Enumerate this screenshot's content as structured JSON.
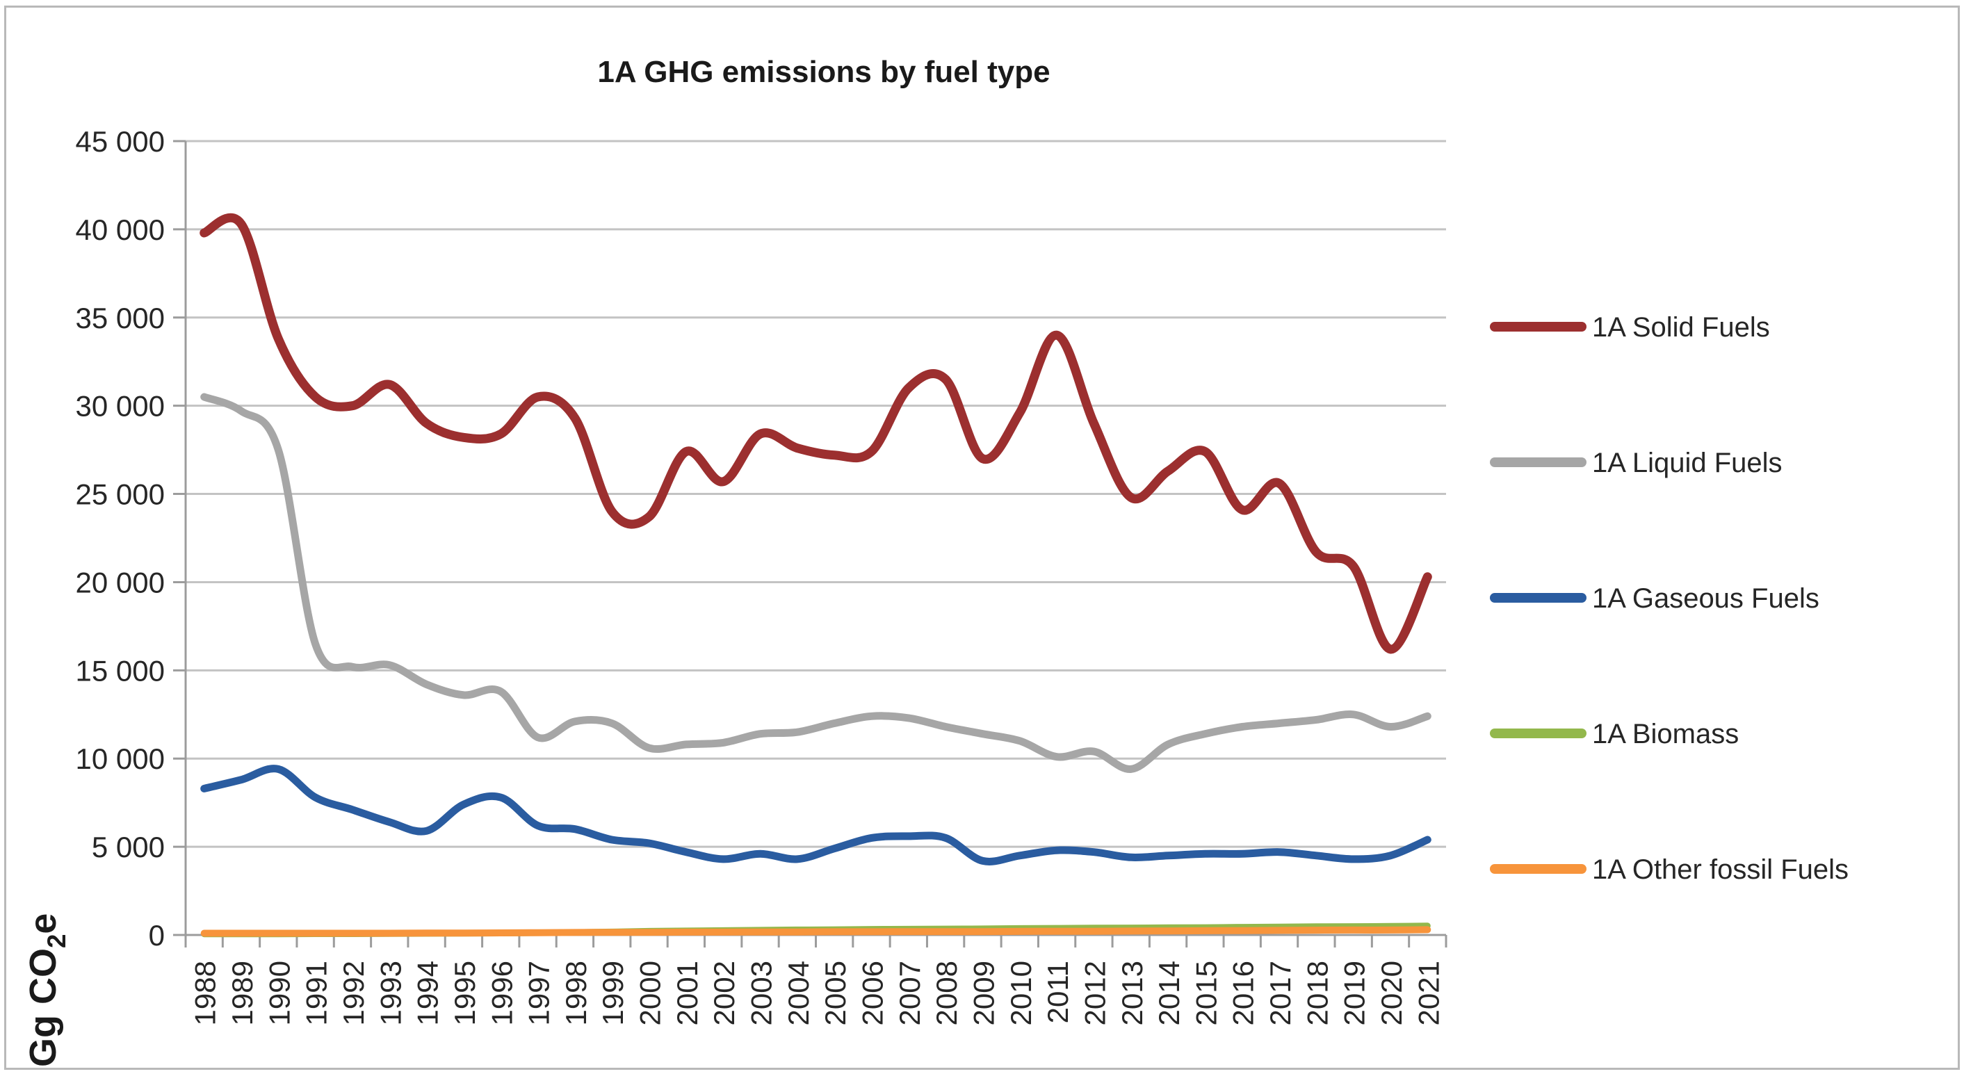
{
  "frame": {
    "border_color": "#b9b9b9",
    "background": "#ffffff"
  },
  "chart_data": {
    "type": "line",
    "title": "1A GHG emissions by fuel type",
    "ylabel": "Gg CO2e",
    "ylabel_parts": [
      "Gg CO",
      "2",
      "e"
    ],
    "xlabel": "",
    "categories": [
      "1988",
      "1989",
      "1990",
      "1991",
      "1992",
      "1993",
      "1994",
      "1995",
      "1996",
      "1997",
      "1998",
      "1999",
      "2000",
      "2001",
      "2002",
      "2003",
      "2004",
      "2005",
      "2006",
      "2007",
      "2008",
      "2009",
      "2010",
      "2011",
      "2012",
      "2013",
      "2014",
      "2015",
      "2016",
      "2017",
      "2018",
      "2019",
      "2020",
      "2021"
    ],
    "ylim": [
      0,
      45000
    ],
    "ytick_step": 5000,
    "ytick_labels": [
      "0",
      "5 000",
      "10 000",
      "15 000",
      "20 000",
      "25 000",
      "30 000",
      "35 000",
      "40 000",
      "45 000"
    ],
    "grid": true,
    "smooth": true,
    "legend_position": "right",
    "axis_color": "#9c9c9c",
    "gridline_color": "#c3c3c3",
    "text_color": "#262626",
    "series": [
      {
        "name": "1A Solid Fuels",
        "color": "#9C2F2F",
        "width": 13,
        "values": [
          39800,
          40300,
          33800,
          30500,
          30000,
          31200,
          29000,
          28200,
          28400,
          30500,
          29300,
          24000,
          23700,
          27400,
          25700,
          28400,
          27600,
          27200,
          27400,
          31000,
          31500,
          27000,
          29600,
          34000,
          29000,
          24800,
          26300,
          27400,
          24100,
          25600,
          21700,
          20900,
          16200,
          20300
        ]
      },
      {
        "name": "1A Liquid Fuels",
        "color": "#A6A6A6",
        "width": 11,
        "values": [
          30500,
          29700,
          27500,
          16500,
          15200,
          15300,
          14200,
          13600,
          13800,
          11200,
          12100,
          12000,
          10600,
          10800,
          10900,
          11400,
          11500,
          12000,
          12400,
          12300,
          11800,
          11400,
          11000,
          10100,
          10400,
          9400,
          10800,
          11400,
          11800,
          12000,
          12200,
          12500,
          11800,
          12400
        ]
      },
      {
        "name": "1A Gaseous Fuels",
        "color": "#2A5CA0",
        "width": 11,
        "values": [
          8300,
          8800,
          9400,
          7800,
          7100,
          6400,
          5900,
          7400,
          7800,
          6200,
          6000,
          5400,
          5200,
          4700,
          4300,
          4600,
          4300,
          4900,
          5500,
          5600,
          5500,
          4200,
          4500,
          4800,
          4700,
          4400,
          4500,
          4600,
          4600,
          4700,
          4500,
          4300,
          4500,
          5400
        ]
      },
      {
        "name": "1A Biomass",
        "color": "#93B84C",
        "width": 9,
        "values": [
          50,
          50,
          50,
          60,
          60,
          70,
          80,
          90,
          100,
          120,
          150,
          180,
          220,
          240,
          260,
          280,
          300,
          310,
          330,
          340,
          350,
          360,
          380,
          390,
          400,
          410,
          420,
          430,
          450,
          460,
          480,
          490,
          500,
          520
        ]
      },
      {
        "name": "1A Other fossil Fuels",
        "color": "#F7943B",
        "width": 10,
        "values": [
          100,
          100,
          100,
          100,
          100,
          100,
          110,
          110,
          120,
          130,
          140,
          150,
          150,
          160,
          160,
          170,
          170,
          180,
          180,
          190,
          190,
          190,
          200,
          210,
          210,
          220,
          230,
          240,
          250,
          260,
          270,
          280,
          280,
          300
        ]
      }
    ]
  }
}
